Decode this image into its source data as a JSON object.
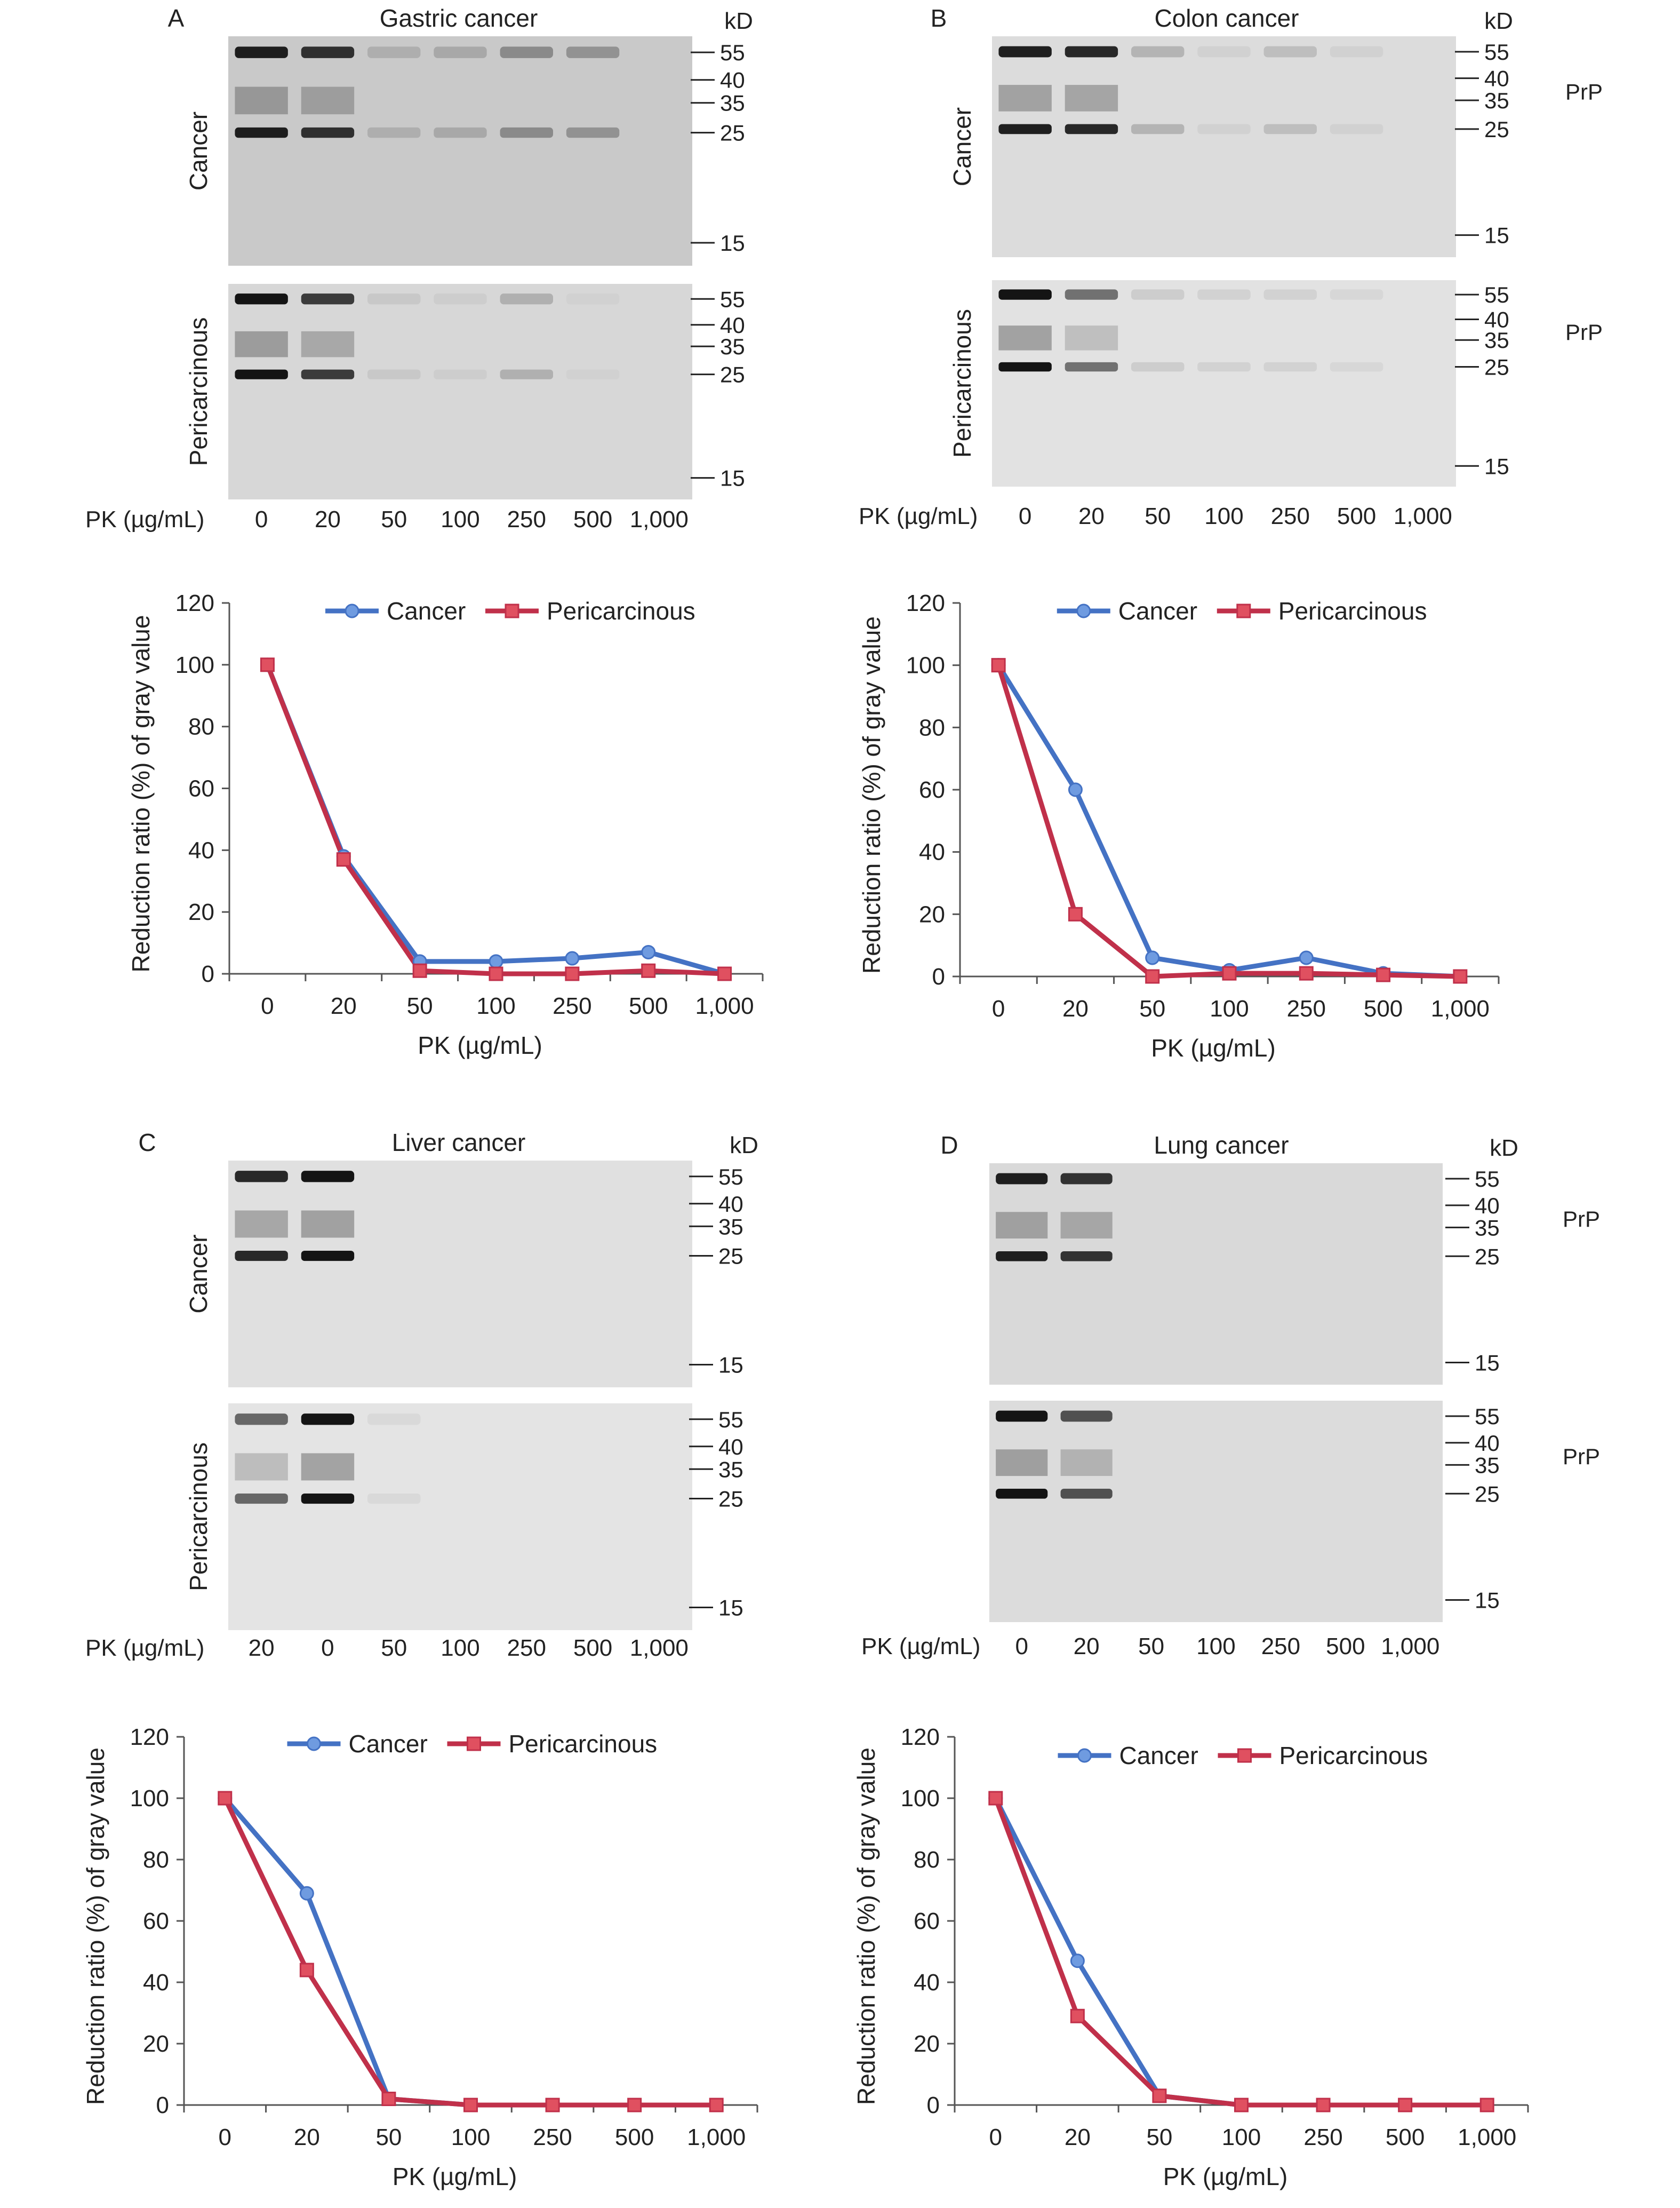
{
  "units": {
    "kd": "kD",
    "prp": "PrP",
    "pk_axis": "PK (µg/mL)"
  },
  "panels": [
    {
      "id": "A",
      "letter": "A",
      "title": "Gastric cancer",
      "show_prp": false,
      "blot": {
        "rows": [
          {
            "label": "Cancer",
            "markers": [
              "55",
              "40",
              "35",
              "25",
              "15"
            ],
            "bg": "#c9c9c9",
            "lane_intensity": [
              0.95,
              0.85,
              0.15,
              0.18,
              0.35,
              0.3,
              0.0
            ]
          },
          {
            "label": "Pericarcinous",
            "markers": [
              "55",
              "40",
              "35",
              "25",
              "15"
            ],
            "bg": "#d7d7d7",
            "lane_intensity": [
              1.0,
              0.8,
              0.08,
              0.05,
              0.2,
              0.03,
              0.0
            ]
          }
        ],
        "lane_labels": [
          "0",
          "20",
          "50",
          "100",
          "250",
          "500",
          "1,000"
        ]
      },
      "chart_data": {
        "type": "line",
        "categories": [
          "0",
          "20",
          "50",
          "100",
          "250",
          "500",
          "1,000"
        ],
        "series": [
          {
            "name": "Cancer",
            "values": [
              100,
              38,
              4,
              4,
              5,
              7,
              0
            ]
          },
          {
            "name": "Pericarcinous",
            "values": [
              100,
              37,
              1,
              0,
              0,
              1,
              0
            ]
          }
        ],
        "xlabel": "PK (µg/mL)",
        "ylabel": "Reduction ratio (%) of gray value",
        "ylim": [
          0,
          120
        ],
        "yticks": [
          "0",
          "20",
          "40",
          "60",
          "80",
          "100",
          "120"
        ],
        "legend": "top"
      }
    },
    {
      "id": "B",
      "letter": "B",
      "title": "Colon cancer",
      "show_prp": true,
      "blot": {
        "rows": [
          {
            "label": "Cancer",
            "markers": [
              "55",
              "40",
              "35",
              "25",
              "15"
            ],
            "bg": "#dcdcdc",
            "lane_intensity": [
              0.95,
              0.9,
              0.2,
              0.05,
              0.15,
              0.05,
              0.0
            ]
          },
          {
            "label": "Pericarcinous",
            "markers": [
              "55",
              "40",
              "35",
              "25",
              "15"
            ],
            "bg": "#e2e2e2",
            "lane_intensity": [
              1.0,
              0.55,
              0.1,
              0.08,
              0.08,
              0.05,
              0.0
            ]
          }
        ],
        "lane_labels": [
          "0",
          "20",
          "50",
          "100",
          "250",
          "500",
          "1,000"
        ]
      },
      "chart_data": {
        "type": "line",
        "categories": [
          "0",
          "20",
          "50",
          "100",
          "250",
          "500",
          "1,000"
        ],
        "series": [
          {
            "name": "Cancer",
            "values": [
              100,
              60,
              6,
              2,
              6,
              1,
              0
            ]
          },
          {
            "name": "Pericarcinous",
            "values": [
              100,
              20,
              0,
              1,
              1,
              0.5,
              0
            ]
          }
        ],
        "xlabel": "PK (µg/mL)",
        "ylabel": "Reduction ratio (%) of gray value",
        "ylim": [
          0,
          120
        ],
        "yticks": [
          "0",
          "20",
          "40",
          "60",
          "80",
          "100",
          "120"
        ],
        "legend": "top"
      }
    },
    {
      "id": "C",
      "letter": "C",
      "title": "Liver cancer",
      "show_prp": false,
      "blot": {
        "rows": [
          {
            "label": "Cancer",
            "markers": [
              "55",
              "40",
              "35",
              "25",
              "15"
            ],
            "bg": "#e0e0e0",
            "lane_intensity": [
              0.9,
              1.0,
              0.0,
              0.0,
              0.0,
              0.0,
              0.0
            ]
          },
          {
            "label": "Pericarcinous",
            "markers": [
              "55",
              "40",
              "35",
              "25",
              "15"
            ],
            "bg": "#e4e4e4",
            "lane_intensity": [
              0.6,
              1.0,
              0.05,
              0.0,
              0.0,
              0.0,
              0.0
            ]
          }
        ],
        "lane_labels": [
          "20",
          "0",
          "50",
          "100",
          "250",
          "500",
          "1,000"
        ]
      },
      "chart_data": {
        "type": "line",
        "categories": [
          "0",
          "20",
          "50",
          "100",
          "250",
          "500",
          "1,000"
        ],
        "series": [
          {
            "name": "Cancer",
            "values": [
              100,
              69,
              2,
              0,
              0,
              0,
              0
            ]
          },
          {
            "name": "Pericarcinous",
            "values": [
              100,
              44,
              2,
              0,
              0,
              0,
              0
            ]
          }
        ],
        "xlabel": "PK (µg/mL)",
        "ylabel": "Reduction ratio (%) of gray value",
        "ylim": [
          0,
          120
        ],
        "yticks": [
          "0",
          "20",
          "40",
          "60",
          "80",
          "100",
          "120"
        ],
        "legend": "top"
      }
    },
    {
      "id": "D",
      "letter": "D",
      "title": "Lung cancer",
      "show_prp": true,
      "blot": {
        "rows": [
          {
            "label": "",
            "markers": [
              "55",
              "40",
              "35",
              "25",
              "15"
            ],
            "bg": "#d9d9d9",
            "lane_intensity": [
              0.95,
              0.85,
              0.0,
              0.0,
              0.0,
              0.0,
              0.0
            ]
          },
          {
            "label": "",
            "markers": [
              "55",
              "40",
              "35",
              "25",
              "15"
            ],
            "bg": "#dcdcdc",
            "lane_intensity": [
              1.0,
              0.7,
              0.0,
              0.0,
              0.0,
              0.0,
              0.0
            ]
          }
        ],
        "lane_labels": [
          "0",
          "20",
          "50",
          "100",
          "250",
          "500",
          "1,000"
        ]
      },
      "chart_data": {
        "type": "line",
        "categories": [
          "0",
          "20",
          "50",
          "100",
          "250",
          "500",
          "1,000"
        ],
        "series": [
          {
            "name": "Cancer",
            "values": [
              100,
              47,
              3,
              0,
              0,
              0,
              0
            ]
          },
          {
            "name": "Pericarcinous",
            "values": [
              100,
              29,
              3,
              0,
              0,
              0,
              0
            ]
          }
        ],
        "xlabel": "PK (µg/mL)",
        "ylabel": "Reduction ratio (%) of gray value",
        "ylim": [
          0,
          120
        ],
        "yticks": [
          "0",
          "20",
          "40",
          "60",
          "80",
          "100",
          "120"
        ],
        "legend": "top"
      }
    }
  ],
  "colors": {
    "cancer": "#4472c4",
    "pericarcinous": "#c0304a",
    "cancer_marker": "#6f9be0",
    "peri_marker": "#e05060",
    "band": "#141414"
  }
}
